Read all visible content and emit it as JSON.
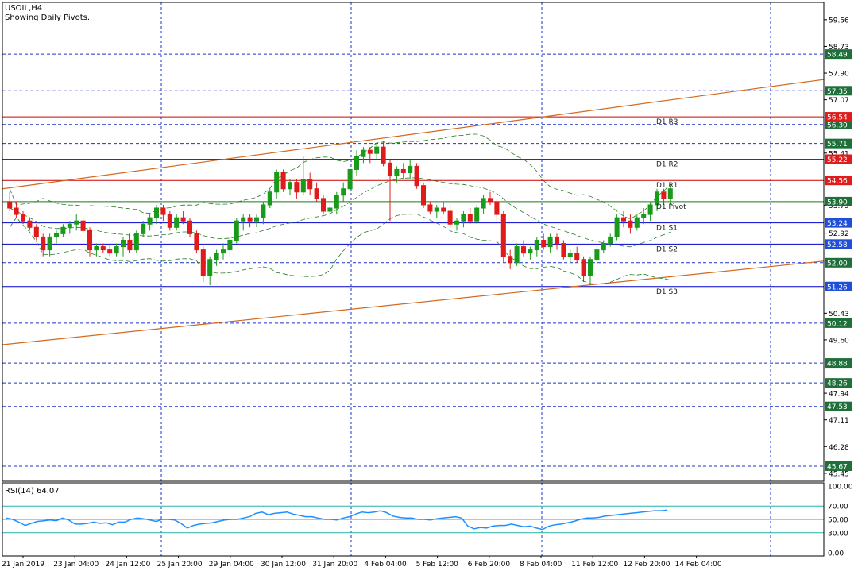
{
  "header": {
    "symbol": "USOIL,H4",
    "subtitle": "Showing Daily Pivots."
  },
  "rsi_panel": {
    "label": "RSI(14) 64.07"
  },
  "colors": {
    "grid": "#1a33cc",
    "bull": "#1a9a1a",
    "bear": "#e01b1b",
    "band": "#2a7a2a",
    "trend": "#d2691e",
    "pivot_resistance": "#cc0000",
    "pivot_main": "#1a7a1a",
    "pivot_support": "#0000cc",
    "rsi_line": "#1e90ff",
    "rsi_levels": "#20b2aa",
    "price_tag_green": "#1f6f3a",
    "price_tag_red": "#e01b1b",
    "price_tag_blue": "#1e4fd6"
  },
  "chart_data": [
    {
      "type": "candlestick",
      "title": "USOIL,H4",
      "subtitle": "Showing Daily Pivots.",
      "ylim": [
        45.2,
        60.1
      ],
      "price_tick_labels": [
        "59.56",
        "58.73",
        "57.90",
        "57.07",
        "55.41",
        "53.79",
        "52.92",
        "50.43",
        "49.60",
        "47.94",
        "47.11",
        "46.28",
        "45.45"
      ],
      "x_tick_labels": [
        "21 Jan 2019",
        "23 Jan 04:00",
        "24 Jan 12:00",
        "25 Jan 20:00",
        "29 Jan 04:00",
        "30 Jan 12:00",
        "31 Jan 20:00",
        "4 Feb 04:00",
        "5 Feb 12:00",
        "6 Feb 20:00",
        "8 Feb 04:00",
        "11 Feb 12:00",
        "12 Feb 20:00",
        "14 Feb 04:00"
      ],
      "pivots": [
        {
          "name": "D1 R3",
          "value": 56.54,
          "kind": "resistance"
        },
        {
          "name": "D1 R2",
          "value": 55.22,
          "kind": "resistance"
        },
        {
          "name": "D1 R1",
          "value": 54.56,
          "kind": "resistance"
        },
        {
          "name": "D1 Pivot",
          "value": 53.9,
          "kind": "pivot"
        },
        {
          "name": "D1 S1",
          "value": 53.24,
          "kind": "support"
        },
        {
          "name": "D1 S2",
          "value": 52.58,
          "kind": "support"
        },
        {
          "name": "D1 S3",
          "value": 51.26,
          "kind": "support"
        }
      ],
      "dotted_levels": [
        {
          "value": 58.49,
          "tag": "58.49",
          "tag_color": "green"
        },
        {
          "value": 57.35,
          "tag": "57.35",
          "tag_color": "green"
        },
        {
          "value": 56.3,
          "tag": "56.30",
          "tag_color": "green"
        },
        {
          "value": 55.71,
          "tag": "55.71",
          "tag_color": "green"
        },
        {
          "value": 52.0,
          "tag": "52.00",
          "tag_color": "green"
        },
        {
          "value": 50.12,
          "tag": "50.12",
          "tag_color": "green"
        },
        {
          "value": 48.88,
          "tag": "48.88",
          "tag_color": "green"
        },
        {
          "value": 48.26,
          "tag": "48.26",
          "tag_color": "green"
        },
        {
          "value": 47.53,
          "tag": "47.53",
          "tag_color": "green"
        },
        {
          "value": 45.67,
          "tag": "45.67",
          "tag_color": "green"
        }
      ],
      "pivot_tags": [
        {
          "value": 56.54,
          "tag": "56.54",
          "tag_color": "red"
        },
        {
          "value": 55.22,
          "tag": "55.22",
          "tag_color": "red"
        },
        {
          "value": 54.56,
          "tag": "54.56",
          "tag_color": "red"
        },
        {
          "value": 53.9,
          "tag": "53.90",
          "tag_color": "green"
        },
        {
          "value": 53.24,
          "tag": "53.24",
          "tag_color": "blue"
        },
        {
          "value": 52.58,
          "tag": "52.58",
          "tag_color": "blue"
        },
        {
          "value": 51.26,
          "tag": "51.26",
          "tag_color": "blue"
        }
      ],
      "trendlines": [
        {
          "name": "upper",
          "from": [
            0,
            54.3
          ],
          "to": [
            160,
            57.7
          ]
        },
        {
          "name": "lower",
          "from": [
            0,
            49.45
          ],
          "to": [
            160,
            52.05
          ]
        }
      ],
      "candles": [
        [
          53.9,
          54.2,
          53.6,
          53.7
        ],
        [
          53.7,
          53.9,
          53.4,
          53.5
        ],
        [
          53.5,
          53.6,
          53.2,
          53.3
        ],
        [
          53.3,
          53.4,
          53.0,
          53.1
        ],
        [
          53.1,
          53.2,
          52.7,
          52.8
        ],
        [
          52.8,
          52.9,
          52.2,
          52.4
        ],
        [
          52.4,
          52.9,
          52.2,
          52.8
        ],
        [
          52.8,
          53.0,
          52.6,
          52.9
        ],
        [
          52.9,
          53.2,
          52.8,
          53.1
        ],
        [
          53.1,
          53.3,
          52.9,
          53.2
        ],
        [
          53.2,
          53.5,
          53.0,
          53.3
        ],
        [
          53.3,
          53.4,
          52.9,
          53.0
        ],
        [
          53.0,
          53.1,
          52.2,
          52.4
        ],
        [
          52.4,
          52.6,
          52.2,
          52.5
        ],
        [
          52.5,
          52.6,
          52.3,
          52.4
        ],
        [
          52.4,
          52.6,
          52.2,
          52.3
        ],
        [
          52.3,
          52.6,
          52.2,
          52.5
        ],
        [
          52.5,
          52.8,
          52.2,
          52.7
        ],
        [
          52.7,
          52.9,
          52.3,
          52.4
        ],
        [
          52.4,
          53.0,
          52.3,
          52.9
        ],
        [
          52.9,
          53.3,
          52.8,
          53.2
        ],
        [
          53.2,
          53.5,
          53.0,
          53.4
        ],
        [
          53.4,
          53.8,
          53.2,
          53.7
        ],
        [
          53.7,
          53.8,
          53.3,
          53.5
        ],
        [
          53.5,
          53.6,
          53.0,
          53.1
        ],
        [
          53.1,
          53.5,
          53.0,
          53.4
        ],
        [
          53.4,
          53.6,
          53.2,
          53.3
        ],
        [
          53.3,
          53.4,
          52.8,
          52.9
        ],
        [
          52.9,
          53.0,
          52.3,
          52.4
        ],
        [
          52.4,
          52.5,
          51.4,
          51.6
        ],
        [
          51.6,
          52.2,
          51.3,
          52.1
        ],
        [
          52.1,
          52.4,
          51.9,
          52.3
        ],
        [
          52.3,
          52.6,
          52.1,
          52.4
        ],
        [
          52.4,
          52.8,
          52.2,
          52.7
        ],
        [
          52.7,
          53.4,
          52.6,
          53.3
        ],
        [
          53.3,
          53.5,
          53.0,
          53.4
        ],
        [
          53.4,
          53.5,
          53.1,
          53.3
        ],
        [
          53.3,
          53.5,
          53.1,
          53.4
        ],
        [
          53.4,
          53.9,
          53.2,
          53.8
        ],
        [
          53.8,
          54.3,
          53.7,
          54.2
        ],
        [
          54.2,
          54.9,
          54.0,
          54.8
        ],
        [
          54.8,
          54.9,
          54.2,
          54.3
        ],
        [
          54.3,
          54.6,
          54.1,
          54.5
        ],
        [
          54.5,
          54.6,
          54.0,
          54.2
        ],
        [
          54.2,
          55.3,
          54.1,
          54.6
        ],
        [
          54.6,
          54.8,
          54.1,
          54.3
        ],
        [
          54.3,
          54.5,
          53.9,
          54.0
        ],
        [
          54.0,
          54.1,
          53.5,
          53.6
        ],
        [
          53.6,
          53.9,
          53.4,
          53.7
        ],
        [
          53.7,
          54.2,
          53.5,
          54.1
        ],
        [
          54.1,
          54.5,
          53.9,
          54.3
        ],
        [
          54.3,
          55.0,
          54.2,
          54.9
        ],
        [
          54.9,
          55.5,
          54.7,
          55.3
        ],
        [
          55.3,
          55.6,
          55.1,
          55.5
        ],
        [
          55.5,
          55.6,
          55.1,
          55.4
        ],
        [
          55.4,
          55.7,
          55.2,
          55.6
        ],
        [
          55.6,
          55.8,
          55.0,
          55.1
        ],
        [
          55.1,
          55.2,
          53.3,
          54.7
        ],
        [
          54.7,
          55.0,
          54.5,
          54.9
        ],
        [
          54.9,
          55.1,
          54.6,
          54.8
        ],
        [
          54.8,
          55.2,
          54.6,
          55.0
        ],
        [
          55.0,
          55.1,
          54.3,
          54.4
        ],
        [
          54.4,
          54.5,
          53.7,
          53.8
        ],
        [
          53.8,
          53.9,
          53.5,
          53.6
        ],
        [
          53.6,
          53.8,
          53.4,
          53.7
        ],
        [
          53.7,
          53.9,
          53.5,
          53.6
        ],
        [
          53.6,
          53.8,
          53.1,
          53.2
        ],
        [
          53.2,
          53.4,
          53.0,
          53.3
        ],
        [
          53.3,
          53.6,
          53.1,
          53.5
        ],
        [
          53.5,
          53.7,
          53.2,
          53.3
        ],
        [
          53.3,
          53.8,
          53.2,
          53.7
        ],
        [
          53.7,
          54.1,
          53.5,
          54.0
        ],
        [
          54.0,
          54.2,
          53.8,
          53.9
        ],
        [
          53.9,
          54.0,
          53.3,
          53.5
        ],
        [
          53.5,
          53.6,
          52.0,
          52.2
        ],
        [
          52.2,
          52.4,
          51.8,
          52.0
        ],
        [
          52.0,
          52.6,
          51.9,
          52.5
        ],
        [
          52.5,
          52.7,
          52.2,
          52.3
        ],
        [
          52.3,
          52.5,
          52.1,
          52.4
        ],
        [
          52.4,
          52.8,
          52.2,
          52.7
        ],
        [
          52.7,
          52.9,
          52.4,
          52.5
        ],
        [
          52.5,
          52.9,
          52.3,
          52.8
        ],
        [
          52.8,
          52.9,
          52.4,
          52.6
        ],
        [
          52.6,
          52.7,
          52.1,
          52.2
        ],
        [
          52.2,
          52.4,
          52.0,
          52.3
        ],
        [
          52.3,
          52.5,
          52.0,
          52.1
        ],
        [
          52.1,
          52.2,
          51.4,
          51.6
        ],
        [
          51.6,
          52.2,
          51.3,
          52.1
        ],
        [
          52.1,
          52.5,
          52.0,
          52.4
        ],
        [
          52.4,
          52.7,
          52.3,
          52.6
        ],
        [
          52.6,
          52.9,
          52.5,
          52.8
        ],
        [
          52.8,
          53.5,
          52.7,
          53.4
        ],
        [
          53.4,
          53.6,
          53.1,
          53.3
        ],
        [
          53.3,
          53.5,
          52.9,
          53.1
        ],
        [
          53.1,
          53.5,
          53.0,
          53.4
        ],
        [
          53.4,
          53.7,
          53.2,
          53.5
        ],
        [
          53.5,
          53.9,
          53.3,
          53.8
        ],
        [
          53.8,
          54.3,
          53.6,
          54.2
        ],
        [
          54.2,
          54.3,
          53.8,
          54.0
        ],
        [
          54.0,
          54.4,
          53.8,
          54.3
        ]
      ]
    },
    {
      "type": "line",
      "title": "RSI(14) 64.07",
      "ylim": [
        0,
        100
      ],
      "y_tick_labels": [
        "100.00",
        "70.00",
        "50.00",
        "30.00",
        "0.00"
      ],
      "levels": [
        70,
        50,
        30
      ],
      "series": [
        {
          "values": [
            52,
            50,
            46,
            41,
            44,
            47,
            48,
            49,
            48,
            52,
            49,
            43,
            43,
            44,
            46,
            44,
            45,
            42,
            46,
            46,
            50,
            52,
            51,
            49,
            47,
            50,
            50,
            49,
            44,
            37,
            41,
            43,
            44,
            45,
            47,
            49,
            50,
            50,
            52,
            54,
            59,
            61,
            57,
            59,
            60,
            61,
            58,
            56,
            54,
            54,
            52,
            50,
            50,
            49,
            52,
            54,
            58,
            61,
            60,
            61,
            63,
            60,
            55,
            53,
            52,
            52,
            50,
            50,
            49,
            51,
            52,
            53,
            54,
            52,
            40,
            36,
            38,
            37,
            40,
            41,
            41,
            43,
            41,
            39,
            40,
            37,
            35,
            40,
            42,
            43,
            45,
            47,
            50,
            52,
            52,
            53,
            55,
            56,
            57,
            58,
            59,
            60,
            61,
            62,
            63,
            63,
            64.07
          ]
        }
      ]
    }
  ]
}
